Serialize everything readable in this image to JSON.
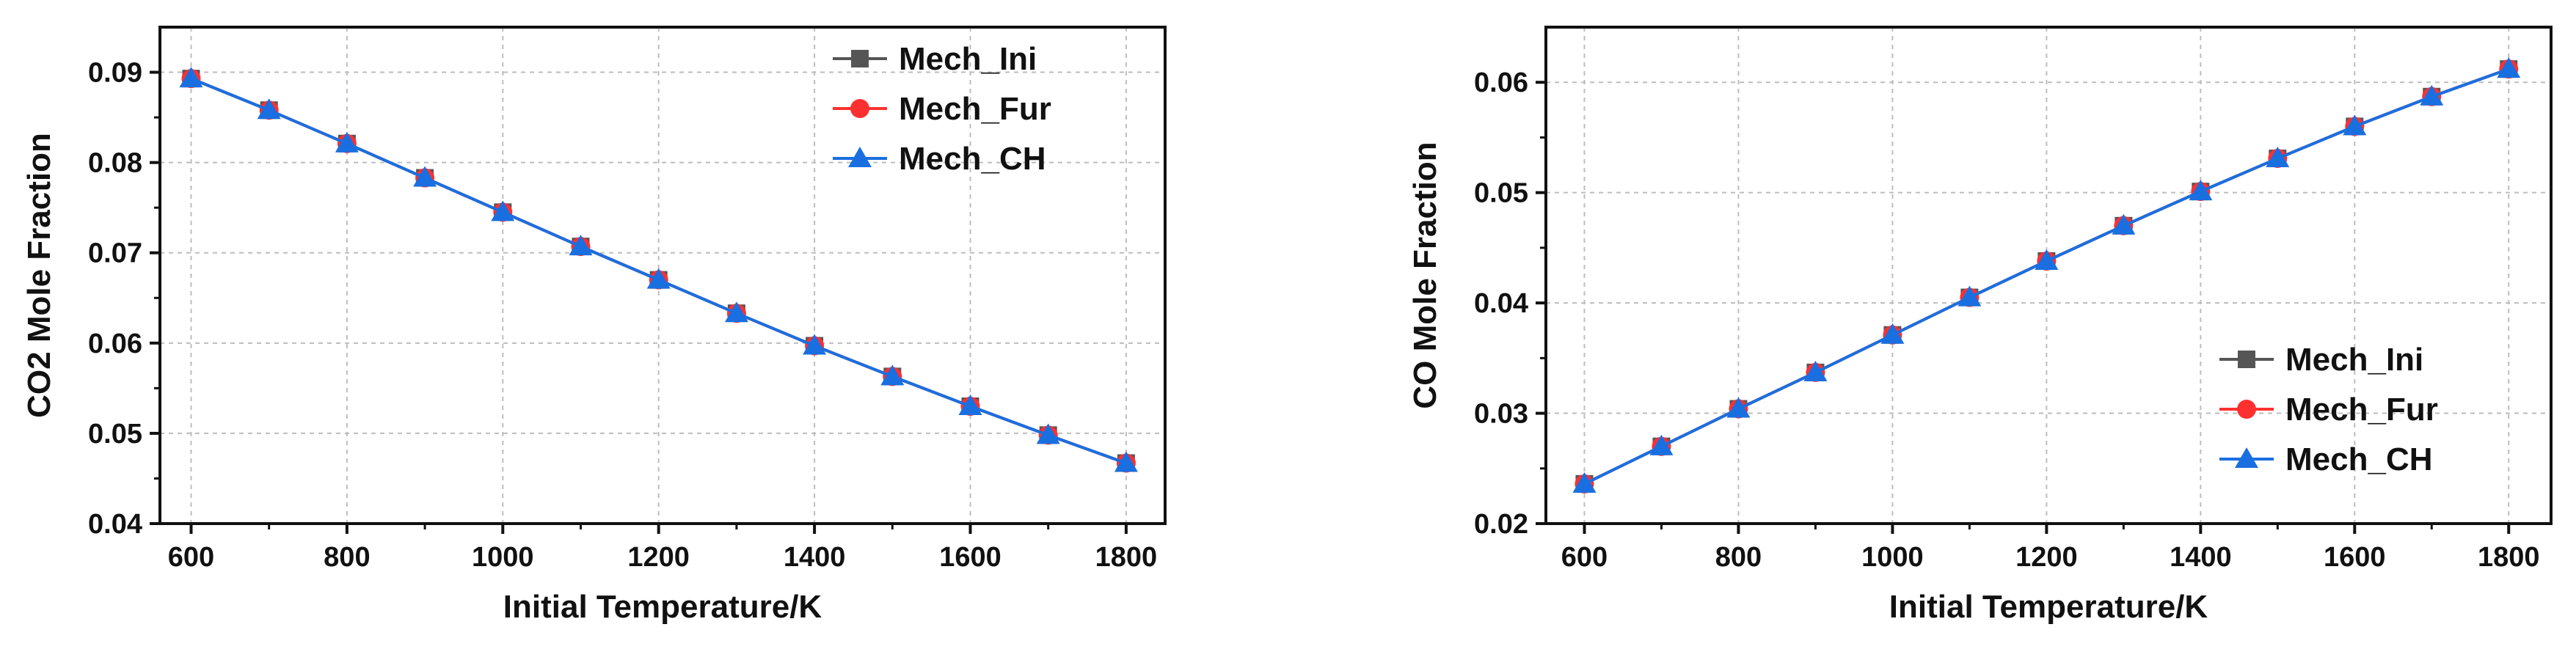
{
  "legend": {
    "mech_ini": "Mech_Ini",
    "mech_fur": "Mech_Fur",
    "mech_ch": "Mech_CH"
  },
  "series_styles": [
    {
      "key": "mech_ini",
      "color": "#555555",
      "marker": "square"
    },
    {
      "key": "mech_fur",
      "color": "#ff3030",
      "marker": "circle"
    },
    {
      "key": "mech_ch",
      "color": "#1a6fe0",
      "marker": "triangle"
    }
  ],
  "chart_data": [
    {
      "type": "line",
      "xlabel": "Initial Temperature/K",
      "ylabel": "CO2 Mole Fraction",
      "xlim": [
        560,
        1850
      ],
      "ylim": [
        0.04,
        0.095
      ],
      "xticks": [
        600,
        800,
        1000,
        1200,
        1400,
        1600,
        1800
      ],
      "yticks": [
        0.04,
        0.05,
        0.06,
        0.07,
        0.08,
        0.09
      ],
      "ytick_labels": [
        "0.04",
        "0.05",
        "0.06",
        "0.07",
        "0.08",
        "0.09"
      ],
      "grid": true,
      "legend_position": "top-right",
      "x": [
        600,
        700,
        800,
        900,
        1000,
        1100,
        1200,
        1300,
        1400,
        1500,
        1600,
        1700,
        1800
      ],
      "series": [
        {
          "name": "Mech_Ini",
          "values": [
            0.0893,
            0.0858,
            0.0821,
            0.0783,
            0.0745,
            0.0707,
            0.067,
            0.0633,
            0.0597,
            0.0563,
            0.053,
            0.0498,
            0.0467
          ]
        },
        {
          "name": "Mech_Fur",
          "values": [
            0.0893,
            0.0858,
            0.0821,
            0.0783,
            0.0745,
            0.0707,
            0.067,
            0.0633,
            0.0597,
            0.0563,
            0.053,
            0.0498,
            0.0467
          ]
        },
        {
          "name": "Mech_CH",
          "values": [
            0.0893,
            0.0858,
            0.0821,
            0.0783,
            0.0745,
            0.0707,
            0.067,
            0.0633,
            0.0597,
            0.0563,
            0.053,
            0.0498,
            0.0467
          ]
        }
      ]
    },
    {
      "type": "line",
      "xlabel": "Initial Temperature/K",
      "ylabel": "CO Mole Fraction",
      "xlim": [
        550,
        1855
      ],
      "ylim": [
        0.02,
        0.065
      ],
      "xticks": [
        600,
        800,
        1000,
        1200,
        1400,
        1600,
        1800
      ],
      "yticks": [
        0.02,
        0.03,
        0.04,
        0.05,
        0.06
      ],
      "ytick_labels": [
        "0.02",
        "0.03",
        "0.04",
        "0.05",
        "0.06"
      ],
      "grid": true,
      "legend_position": "bottom-right",
      "x": [
        600,
        700,
        800,
        900,
        1000,
        1100,
        1200,
        1300,
        1400,
        1500,
        1600,
        1700,
        1800
      ],
      "series": [
        {
          "name": "Mech_Ini",
          "values": [
            0.0236,
            0.027,
            0.0304,
            0.0337,
            0.0371,
            0.0405,
            0.0438,
            0.047,
            0.0501,
            0.0531,
            0.056,
            0.0587,
            0.0612
          ]
        },
        {
          "name": "Mech_Fur",
          "values": [
            0.0236,
            0.027,
            0.0304,
            0.0337,
            0.0371,
            0.0405,
            0.0438,
            0.047,
            0.0501,
            0.0531,
            0.056,
            0.0587,
            0.0612
          ]
        },
        {
          "name": "Mech_CH",
          "values": [
            0.0236,
            0.027,
            0.0304,
            0.0337,
            0.0371,
            0.0405,
            0.0438,
            0.047,
            0.0501,
            0.0531,
            0.056,
            0.0587,
            0.0612
          ]
        }
      ]
    }
  ]
}
